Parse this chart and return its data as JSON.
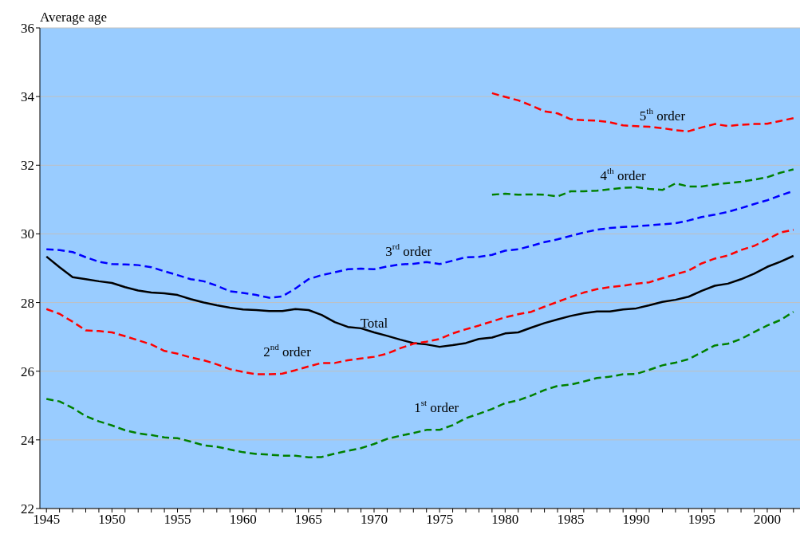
{
  "chart_data": {
    "type": "line",
    "ylabel": "Average age",
    "x": [
      1945,
      1946,
      1947,
      1948,
      1949,
      1950,
      1951,
      1952,
      1953,
      1954,
      1955,
      1956,
      1957,
      1958,
      1959,
      1960,
      1961,
      1962,
      1963,
      1964,
      1965,
      1966,
      1967,
      1968,
      1969,
      1970,
      1971,
      1972,
      1973,
      1974,
      1975,
      1976,
      1977,
      1978,
      1979,
      1980,
      1981,
      1982,
      1983,
      1984,
      1985,
      1986,
      1987,
      1988,
      1989,
      1990,
      1991,
      1992,
      1993,
      1994,
      1995,
      1996,
      1997,
      1998,
      1999,
      2000,
      2001,
      2002
    ],
    "series": [
      {
        "name": "Total",
        "color": "#000000",
        "line_style": "solid",
        "values": [
          29.34,
          29.03,
          28.74,
          28.68,
          28.62,
          28.57,
          28.45,
          28.35,
          28.29,
          28.27,
          28.22,
          28.1,
          28.0,
          27.92,
          27.85,
          27.8,
          27.78,
          27.75,
          27.75,
          27.81,
          27.78,
          27.64,
          27.43,
          27.29,
          27.25,
          27.13,
          27.03,
          26.92,
          26.82,
          26.78,
          26.71,
          26.76,
          26.82,
          26.94,
          26.98,
          27.1,
          27.13,
          27.27,
          27.4,
          27.51,
          27.61,
          27.69,
          27.74,
          27.74,
          27.8,
          27.83,
          27.92,
          28.02,
          28.08,
          28.17,
          28.34,
          28.49,
          28.55,
          28.68,
          28.84,
          29.04,
          29.19,
          29.36
        ]
      },
      {
        "name": "1$^{st}$ order",
        "color": "#008000",
        "line_style": "dashed",
        "values": [
          25.19,
          25.12,
          24.93,
          24.69,
          24.54,
          24.42,
          24.28,
          24.19,
          24.14,
          24.07,
          24.05,
          23.95,
          23.84,
          23.8,
          23.72,
          23.64,
          23.59,
          23.57,
          23.54,
          23.54,
          23.49,
          23.5,
          23.6,
          23.68,
          23.76,
          23.88,
          24.03,
          24.12,
          24.2,
          24.29,
          24.29,
          24.43,
          24.63,
          24.76,
          24.9,
          25.07,
          25.15,
          25.29,
          25.45,
          25.57,
          25.61,
          25.7,
          25.8,
          25.84,
          25.91,
          25.92,
          26.04,
          26.17,
          26.25,
          26.35,
          26.55,
          26.75,
          26.8,
          26.94,
          27.14,
          27.33,
          27.49,
          27.73
        ]
      },
      {
        "name": "2$^{nd}$ order",
        "color": "#ff0000",
        "line_style": "dashed",
        "values": [
          27.81,
          27.67,
          27.44,
          27.19,
          27.17,
          27.13,
          27.02,
          26.9,
          26.78,
          26.59,
          26.51,
          26.4,
          26.32,
          26.2,
          26.06,
          25.98,
          25.91,
          25.91,
          25.93,
          26.03,
          26.14,
          26.24,
          26.24,
          26.32,
          26.37,
          26.42,
          26.51,
          26.67,
          26.8,
          26.86,
          26.94,
          27.1,
          27.22,
          27.33,
          27.45,
          27.57,
          27.66,
          27.73,
          27.88,
          28.02,
          28.16,
          28.29,
          28.39,
          28.45,
          28.49,
          28.55,
          28.59,
          28.71,
          28.82,
          28.93,
          29.14,
          29.28,
          29.37,
          29.53,
          29.65,
          29.84,
          30.04,
          30.12
        ]
      },
      {
        "name": "3$^{rd}$ order",
        "color": "#0000ff",
        "line_style": "dashed",
        "values": [
          29.55,
          29.53,
          29.47,
          29.32,
          29.19,
          29.12,
          29.11,
          29.09,
          29.03,
          28.91,
          28.8,
          28.68,
          28.62,
          28.49,
          28.33,
          28.28,
          28.22,
          28.14,
          28.18,
          28.41,
          28.68,
          28.8,
          28.88,
          28.97,
          28.99,
          28.97,
          29.05,
          29.11,
          29.13,
          29.18,
          29.12,
          29.22,
          29.32,
          29.33,
          29.39,
          29.51,
          29.55,
          29.65,
          29.76,
          29.84,
          29.94,
          30.04,
          30.12,
          30.17,
          30.2,
          30.22,
          30.25,
          30.28,
          30.31,
          30.39,
          30.49,
          30.56,
          30.64,
          30.75,
          30.87,
          30.98,
          31.12,
          31.25
        ]
      },
      {
        "name": "4$^{th}$ order",
        "color": "#008000",
        "line_style": "dashed",
        "x": [
          1979,
          1980,
          1981,
          1982,
          1983,
          1984,
          1985,
          1986,
          1987,
          1988,
          1989,
          1990,
          1991,
          1992,
          1993,
          1994,
          1995,
          1996,
          1997,
          1998,
          1999,
          2000,
          2001,
          2002
        ],
        "values": [
          31.14,
          31.17,
          31.14,
          31.15,
          31.14,
          31.09,
          31.24,
          31.24,
          31.26,
          31.3,
          31.34,
          31.36,
          31.31,
          31.28,
          31.47,
          31.38,
          31.38,
          31.44,
          31.48,
          31.52,
          31.58,
          31.65,
          31.78,
          31.88
        ]
      },
      {
        "name": "5$^{th}$ order",
        "color": "#ff0000",
        "line_style": "dashed",
        "x": [
          1979,
          1980,
          1981,
          1982,
          1983,
          1984,
          1985,
          1986,
          1987,
          1988,
          1989,
          1990,
          1991,
          1992,
          1993,
          1994,
          1995,
          1996,
          1997,
          1998,
          1999,
          2000,
          2001,
          2002
        ],
        "values": [
          34.1,
          33.99,
          33.89,
          33.74,
          33.57,
          33.51,
          33.34,
          33.31,
          33.3,
          33.25,
          33.16,
          33.14,
          33.12,
          33.08,
          33.02,
          32.99,
          33.1,
          33.2,
          33.14,
          33.18,
          33.2,
          33.21,
          33.29,
          33.37
        ]
      }
    ],
    "xlim": [
      1944.5,
      2002.5
    ],
    "xticks": [
      1945,
      {
        "value": 1946,
        "label": null
      },
      {
        "value": 1947,
        "label": null
      },
      {
        "value": 1948,
        "label": null
      },
      {
        "value": 1949,
        "label": null
      },
      1950,
      {
        "value": 1951,
        "label": null
      },
      {
        "value": 1952,
        "label": null
      },
      {
        "value": 1953,
        "label": null
      },
      {
        "value": 1954,
        "label": null
      },
      1955,
      {
        "value": 1956,
        "label": null
      },
      {
        "value": 1957,
        "label": null
      },
      {
        "value": 1958,
        "label": null
      },
      {
        "value": 1959,
        "label": null
      },
      1960,
      {
        "value": 1961,
        "label": null
      },
      {
        "value": 1962,
        "label": null
      },
      {
        "value": 1963,
        "label": null
      },
      {
        "value": 1964,
        "label": null
      },
      1965,
      {
        "value": 1966,
        "label": null
      },
      {
        "value": 1967,
        "label": null
      },
      {
        "value": 1968,
        "label": null
      },
      {
        "value": 1969,
        "label": null
      },
      1970,
      {
        "value": 1971,
        "label": null
      },
      {
        "value": 1972,
        "label": null
      },
      {
        "value": 1973,
        "label": null
      },
      {
        "value": 1974,
        "label": null
      },
      1975,
      {
        "value": 1976,
        "label": null
      },
      {
        "value": 1977,
        "label": null
      },
      {
        "value": 1978,
        "label": null
      },
      {
        "value": 1979,
        "label": null
      },
      1980,
      {
        "value": 1981,
        "label": null
      },
      {
        "value": 1982,
        "label": null
      },
      {
        "value": 1983,
        "label": null
      },
      {
        "value": 1984,
        "label": null
      },
      1985,
      {
        "value": 1986,
        "label": null
      },
      {
        "value": 1987,
        "label": null
      },
      {
        "value": 1988,
        "label": null
      },
      {
        "value": 1989,
        "label": null
      },
      1990,
      {
        "value": 1991,
        "label": null
      },
      {
        "value": 1992,
        "label": null
      },
      {
        "value": 1993,
        "label": null
      },
      {
        "value": 1994,
        "label": null
      },
      1995,
      {
        "value": 1996,
        "label": null
      },
      {
        "value": 1997,
        "label": null
      },
      {
        "value": 1998,
        "label": null
      },
      {
        "value": 1999,
        "label": null
      },
      2000,
      {
        "value": 2001,
        "label": null
      },
      {
        "value": 2002,
        "label": null
      }
    ],
    "ylim": [
      22,
      36
    ],
    "yticks": [
      22,
      24,
      26,
      28,
      30,
      32,
      34,
      36
    ],
    "grid": "y",
    "marker": "none"
  }
}
